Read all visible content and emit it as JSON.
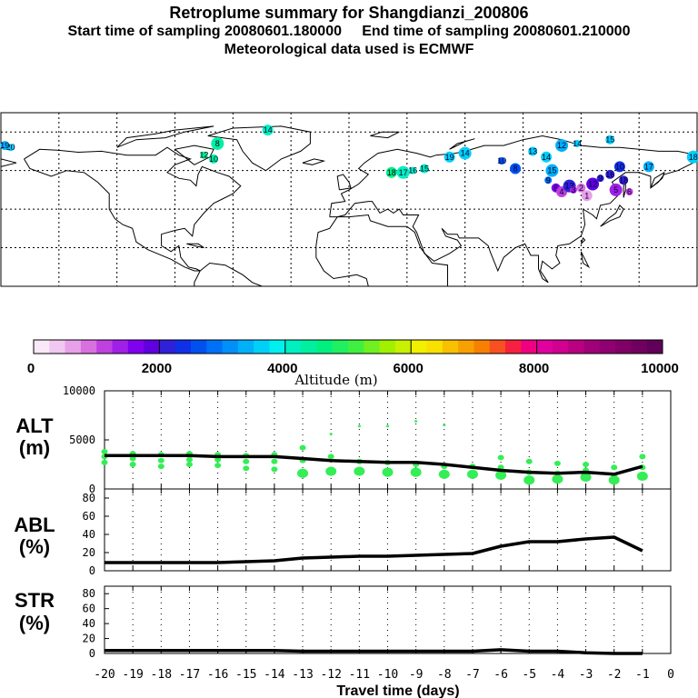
{
  "header": {
    "title": "Retroplume summary for Shangdianzi_200806",
    "sampling": "Start time of sampling 20080601.180000     End time of sampling 20080601.210000",
    "met": "Meteorological data used is ECMWF"
  },
  "colors": {
    "line": "#000000",
    "dots": "#33ee55",
    "frame": "#000000",
    "grid": "#000000"
  },
  "colorbar": {
    "label": "Altitude (m)",
    "tick_labels": [
      "0",
      "2000",
      "4000",
      "6000",
      "8000",
      "10000"
    ],
    "colors": [
      "#f8e8f8",
      "#f0c8f0",
      "#e8a0e8",
      "#d870e0",
      "#c040e0",
      "#a020e8",
      "#8000f0",
      "#6000e0",
      "#3020d8",
      "#1030e8",
      "#0050f0",
      "#0070f8",
      "#0090f8",
      "#00b0f8",
      "#00d0f8",
      "#00f0f0",
      "#00f0c0",
      "#00f0a0",
      "#00f080",
      "#20f060",
      "#40f040",
      "#70f020",
      "#a0f000",
      "#c8f000",
      "#f0f000",
      "#f8e000",
      "#f8c000",
      "#f8a000",
      "#f88000",
      "#f85020",
      "#f82040",
      "#f00080",
      "#e000a0",
      "#d00090",
      "#b80080",
      "#a00078",
      "#900070",
      "#800068",
      "#700060",
      "#600058"
    ]
  },
  "map": {
    "points": [
      {
        "lon": -175,
        "lat": 72,
        "label": "20",
        "color": "#00d0f8"
      },
      {
        "lon": -178,
        "lat": 73,
        "label": "19",
        "color": "#00b0f8"
      },
      {
        "lon": -42,
        "lat": 81,
        "label": "14",
        "color": "#00f0c0"
      },
      {
        "lon": -68,
        "lat": 74,
        "label": "8",
        "color": "#00f0a0"
      },
      {
        "lon": -75,
        "lat": 68,
        "label": "12",
        "color": "#00f080"
      },
      {
        "lon": -70,
        "lat": 66,
        "label": "10",
        "color": "#00f0a0"
      },
      {
        "lon": 22,
        "lat": 59,
        "label": "18",
        "color": "#00f080"
      },
      {
        "lon": 28,
        "lat": 59,
        "label": "17",
        "color": "#00f0c0"
      },
      {
        "lon": 33,
        "lat": 60,
        "label": "16",
        "color": "#00f0c0"
      },
      {
        "lon": 39,
        "lat": 61,
        "label": "15",
        "color": "#00f0c0"
      },
      {
        "lon": 52,
        "lat": 67,
        "label": "19",
        "color": "#00d0f8"
      },
      {
        "lon": 60,
        "lat": 69,
        "label": "14",
        "color": "#00d0f8"
      },
      {
        "lon": 79,
        "lat": 65,
        "label": "10",
        "color": "#0050f0"
      },
      {
        "lon": 95,
        "lat": 70,
        "label": "13",
        "color": "#00d0f8"
      },
      {
        "lon": 102,
        "lat": 67,
        "label": "14",
        "color": "#00d0f8"
      },
      {
        "lon": 110,
        "lat": 73,
        "label": "12",
        "color": "#00b0f8"
      },
      {
        "lon": 118,
        "lat": 74,
        "label": "14",
        "color": "#00d0f8"
      },
      {
        "lon": 135,
        "lat": 76,
        "label": "15",
        "color": "#00d0f8"
      },
      {
        "lon": 86,
        "lat": 61,
        "label": "8",
        "color": "#0050f0"
      },
      {
        "lon": 105,
        "lat": 60,
        "label": "15",
        "color": "#00b0f8"
      },
      {
        "lon": 103,
        "lat": 55,
        "label": "9",
        "color": "#0070f8"
      },
      {
        "lon": 107,
        "lat": 51,
        "label": "6",
        "color": "#8000f0"
      },
      {
        "lon": 110,
        "lat": 49,
        "label": "4",
        "color": "#c040e0"
      },
      {
        "lon": 114,
        "lat": 52,
        "label": "13",
        "color": "#3020d8"
      },
      {
        "lon": 116,
        "lat": 50,
        "label": "3",
        "color": "#a020e8"
      },
      {
        "lon": 120,
        "lat": 51,
        "label": "2",
        "color": "#d870e0"
      },
      {
        "lon": 123,
        "lat": 47,
        "label": "1",
        "color": "#e8a0e8"
      },
      {
        "lon": 126,
        "lat": 53,
        "label": "12",
        "color": "#6000e0"
      },
      {
        "lon": 130,
        "lat": 56,
        "label": "9",
        "color": "#3020d8"
      },
      {
        "lon": 135,
        "lat": 58,
        "label": "16",
        "color": "#3020d8"
      },
      {
        "lon": 140,
        "lat": 62,
        "label": "10",
        "color": "#1030e8"
      },
      {
        "lon": 138,
        "lat": 50,
        "label": "5",
        "color": "#a020e8"
      },
      {
        "lon": 145,
        "lat": 49,
        "label": "6",
        "color": "#c040e0"
      },
      {
        "lon": 142,
        "lat": 55,
        "label": "18",
        "color": "#3020d8"
      },
      {
        "lon": 155,
        "lat": 62,
        "label": "17",
        "color": "#00b0f8"
      },
      {
        "lon": 178,
        "lat": 67,
        "label": "18",
        "color": "#00d0f8"
      }
    ]
  },
  "chart_data": [
    {
      "type": "line",
      "label_top": "ALT",
      "label_unit": "(m)",
      "x": [
        -20,
        -19,
        -18,
        -17,
        -16,
        -15,
        -14,
        -13,
        -12,
        -11,
        -10,
        -9,
        -8,
        -7,
        -6,
        -5,
        -4,
        -3,
        -2,
        -1
      ],
      "series": [
        {
          "name": "mean altitude",
          "values": [
            3400,
            3400,
            3400,
            3400,
            3300,
            3300,
            3300,
            3100,
            2900,
            2800,
            2700,
            2700,
            2500,
            2200,
            1900,
            1700,
            1600,
            1700,
            1500,
            2300
          ]
        }
      ],
      "scatter": [
        {
          "x": -20,
          "ys": [
            3800,
            3300,
            2700
          ]
        },
        {
          "x": -19,
          "ys": [
            3600,
            3100,
            2500
          ]
        },
        {
          "x": -18,
          "ys": [
            3500,
            2900,
            2300
          ]
        },
        {
          "x": -17,
          "ys": [
            3600,
            3000,
            2500
          ]
        },
        {
          "x": -16,
          "ys": [
            3500,
            3000,
            2400
          ]
        },
        {
          "x": -15,
          "ys": [
            3400,
            2800,
            2100
          ]
        },
        {
          "x": -14,
          "ys": [
            3500,
            2800,
            2000
          ]
        },
        {
          "x": -13,
          "ys": [
            4200,
            2900,
            1600
          ]
        },
        {
          "x": -12,
          "ys": [
            5600,
            3300,
            1800
          ]
        },
        {
          "x": -11,
          "ys": [
            6400,
            2800,
            1800
          ]
        },
        {
          "x": -10,
          "ys": [
            6400,
            2700,
            1700
          ]
        },
        {
          "x": -9,
          "ys": [
            6900,
            2500,
            1700
          ]
        },
        {
          "x": -8,
          "ys": [
            6500,
            2300,
            1500
          ]
        },
        {
          "x": -7,
          "ys": [
            2300,
            1500
          ]
        },
        {
          "x": -6,
          "ys": [
            3200,
            2200,
            1400
          ]
        },
        {
          "x": -5,
          "ys": [
            2800,
            1700,
            900
          ]
        },
        {
          "x": -4,
          "ys": [
            2600,
            1600,
            1000
          ]
        },
        {
          "x": -3,
          "ys": [
            2500,
            1900,
            1200
          ]
        },
        {
          "x": -2,
          "ys": [
            2200,
            1400,
            900
          ]
        },
        {
          "x": -1,
          "ys": [
            3300,
            2200,
            1300
          ]
        }
      ],
      "ylim": [
        0,
        10000
      ],
      "yticks": [
        "0",
        "5000",
        "10000"
      ]
    },
    {
      "type": "line",
      "label_top": "ABL",
      "label_unit": "(%)",
      "x": [
        -20,
        -19,
        -18,
        -17,
        -16,
        -15,
        -14,
        -13,
        -12,
        -11,
        -10,
        -9,
        -8,
        -7,
        -6,
        -5,
        -4,
        -3,
        -2,
        -1
      ],
      "series": [
        {
          "name": "fraction in boundary layer",
          "values": [
            9,
            9,
            9,
            9,
            9,
            10,
            11,
            14,
            15,
            16,
            16,
            17,
            18,
            19,
            27,
            32,
            32,
            35,
            37,
            22
          ]
        }
      ],
      "ylim": [
        0,
        90
      ],
      "yticks": [
        "0",
        "20",
        "40",
        "60",
        "80"
      ]
    },
    {
      "type": "line",
      "label_top": "STR",
      "label_unit": "(%)",
      "x": [
        -20,
        -19,
        -18,
        -17,
        -16,
        -15,
        -14,
        -13,
        -12,
        -11,
        -10,
        -9,
        -8,
        -7,
        -6,
        -5,
        -4,
        -3,
        -2,
        -1
      ],
      "series": [
        {
          "name": "fraction in stratosphere",
          "values": [
            4,
            4,
            4,
            4,
            4,
            4,
            4,
            3,
            3,
            3,
            3,
            3,
            3,
            3,
            5,
            3,
            3,
            1,
            0,
            0
          ]
        }
      ],
      "ylim": [
        0,
        90
      ],
      "yticks": [
        "0",
        "20",
        "40",
        "60",
        "80"
      ],
      "xlabel": "Travel time (days)",
      "xtick_labels": [
        "-20",
        "-19",
        "-18",
        "-17",
        "-16",
        "-15",
        "-14",
        "-13",
        "-12",
        "-11",
        "-10",
        "-9",
        "-8",
        "-7",
        "-6",
        "-5",
        "-4",
        "-3",
        "-2",
        "-1",
        "0"
      ]
    }
  ]
}
